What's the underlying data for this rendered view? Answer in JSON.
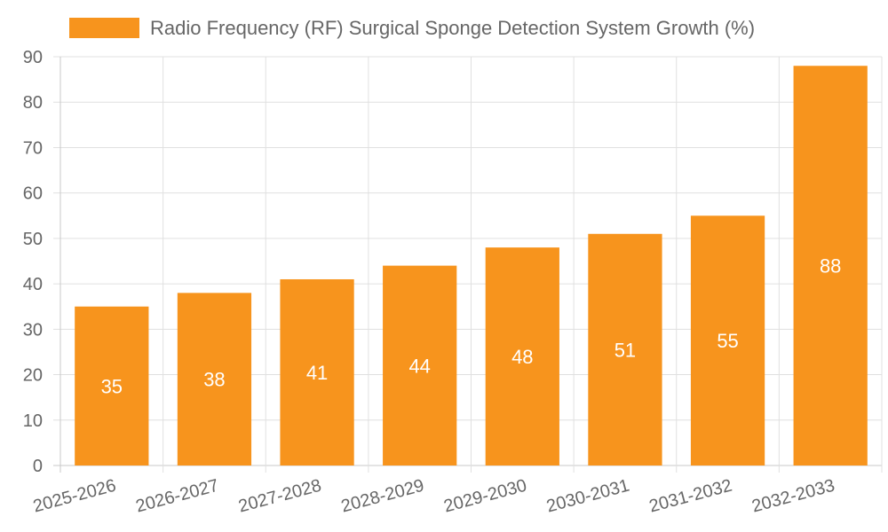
{
  "chart_data": {
    "type": "bar",
    "categories": [
      "2025-2026",
      "2026-2027",
      "2027-2028",
      "2028-2029",
      "2029-2030",
      "2030-2031",
      "2031-2032",
      "2032-2033"
    ],
    "series": [
      {
        "name": "Radio Frequency (RF) Surgical Sponge Detection System Growth (%)",
        "values": [
          35,
          38,
          41,
          44,
          48,
          51,
          55,
          88
        ]
      }
    ],
    "ylim": [
      0,
      90
    ],
    "yticks": [
      "0",
      "10",
      "20",
      "30",
      "40",
      "50",
      "60",
      "70",
      "80",
      "90"
    ],
    "grid": true,
    "legend_position": "top",
    "bar_color": "#f7941d",
    "grid_color": "#e0e0e0",
    "axis_color": "#c8c8c8"
  }
}
